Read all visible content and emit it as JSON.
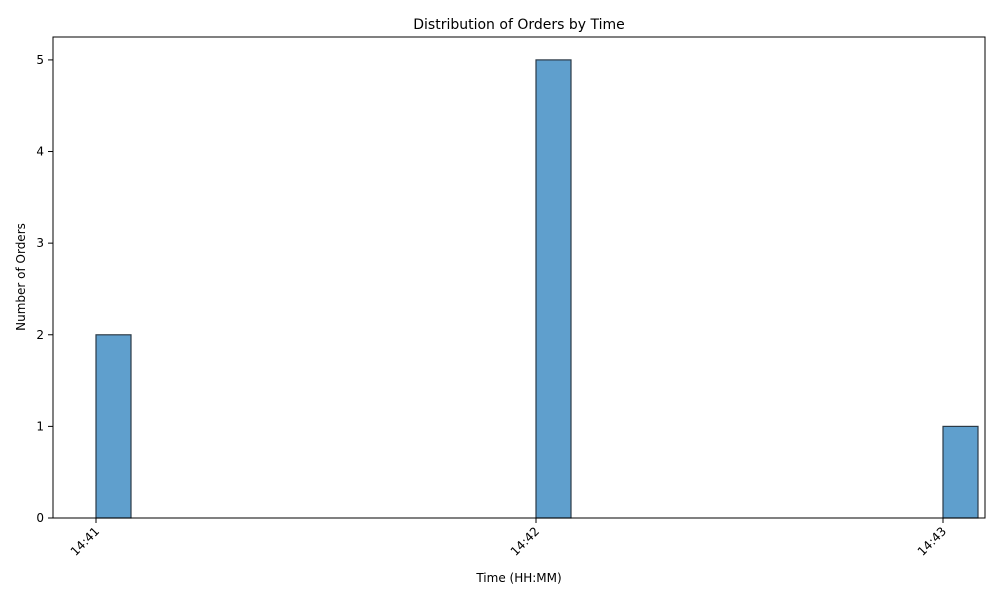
{
  "chart_data": {
    "type": "bar",
    "title": "Distribution of Orders by Time",
    "xlabel": "Time (HH:MM)",
    "ylabel": "Number of Orders",
    "x_ticks": [
      "14:41",
      "14:42",
      "14:43"
    ],
    "y_ticks": [
      0,
      1,
      2,
      3,
      4,
      5
    ],
    "ylim": [
      0,
      5.25
    ],
    "series": [
      {
        "bars": [
          {
            "time": "14:41",
            "value": 2
          },
          {
            "time": "14:42",
            "value": 5
          },
          {
            "time": "14:43",
            "value": 1
          }
        ]
      }
    ],
    "colors": {
      "bar_fill": "#5f9fcd",
      "bar_edge": "#2b3a46"
    },
    "grid": false,
    "legend": "none"
  }
}
